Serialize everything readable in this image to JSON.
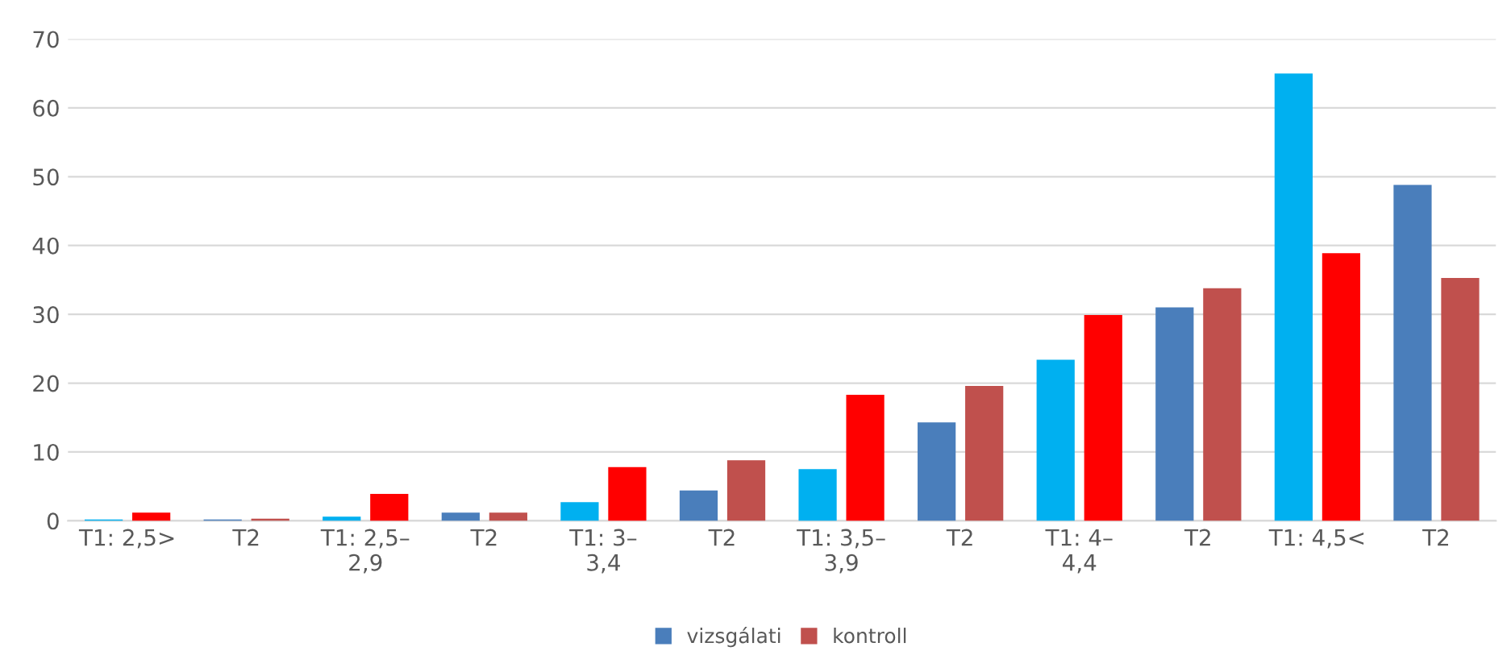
{
  "chart_data": {
    "type": "bar",
    "categories": [
      "T1: 2,5>",
      "T2",
      "T1: 2,5–\n2,9",
      "T2",
      "T1: 3–\n3,4",
      "T2",
      "T1: 3,5–\n3,9",
      "T2",
      "T1: 4–\n4,4",
      "T2",
      "T1: 4,5<",
      "T2"
    ],
    "series": [
      {
        "name": "vizsgálati",
        "color": "#4a7ebb",
        "colors": [
          "#00b0f0",
          "#4a7ebb",
          "#00b0f0",
          "#4a7ebb",
          "#00b0f0",
          "#4a7ebb",
          "#00b0f0",
          "#4a7ebb",
          "#00b0f0",
          "#4a7ebb",
          "#00b0f0",
          "#4a7ebb"
        ],
        "values": [
          0.2,
          0.2,
          0.6,
          1.2,
          2.7,
          4.4,
          7.5,
          14.3,
          23.4,
          31,
          65,
          48.8
        ]
      },
      {
        "name": "kontroll",
        "color": "#c0504d",
        "colors": [
          "#ff0000",
          "#c0504d",
          "#ff0000",
          "#c0504d",
          "#ff0000",
          "#c0504d",
          "#ff0000",
          "#c0504d",
          "#ff0000",
          "#c0504d",
          "#ff0000",
          "#c0504d"
        ],
        "values": [
          1.2,
          0.3,
          3.9,
          1.2,
          7.8,
          8.8,
          18.3,
          19.6,
          29.9,
          33.8,
          38.9,
          35.3
        ]
      }
    ],
    "ylim": [
      0,
      70
    ],
    "yticks": [
      0,
      10,
      20,
      30,
      40,
      50,
      60,
      70
    ],
    "grid": "y",
    "legend": "bottom"
  }
}
